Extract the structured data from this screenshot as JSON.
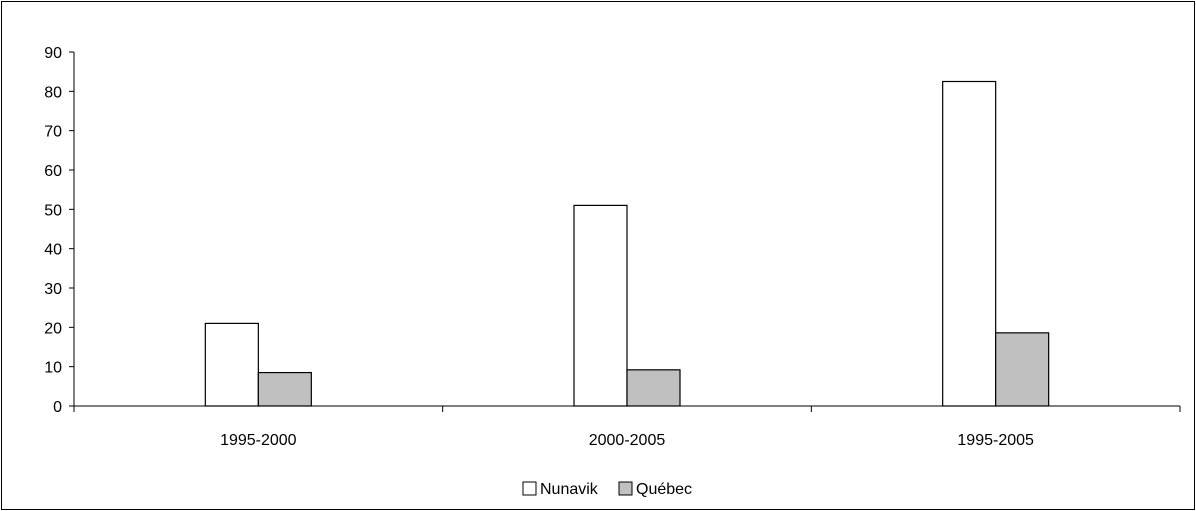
{
  "chart_data": {
    "type": "bar",
    "categories": [
      "1995-2000",
      "2000-2005",
      "1995-2005"
    ],
    "series": [
      {
        "name": "Nunavik",
        "values": [
          21,
          51,
          82.5
        ],
        "color": "#ffffff"
      },
      {
        "name": "Québec",
        "values": [
          8.5,
          9.2,
          18.6
        ],
        "color": "#c0c0c0"
      }
    ],
    "title": "",
    "xlabel": "",
    "ylabel": "",
    "ylim": [
      0,
      90
    ],
    "yticks": [
      0,
      10,
      20,
      30,
      40,
      50,
      60,
      70,
      80,
      90
    ],
    "grid": false,
    "legend": "bottom-center"
  }
}
